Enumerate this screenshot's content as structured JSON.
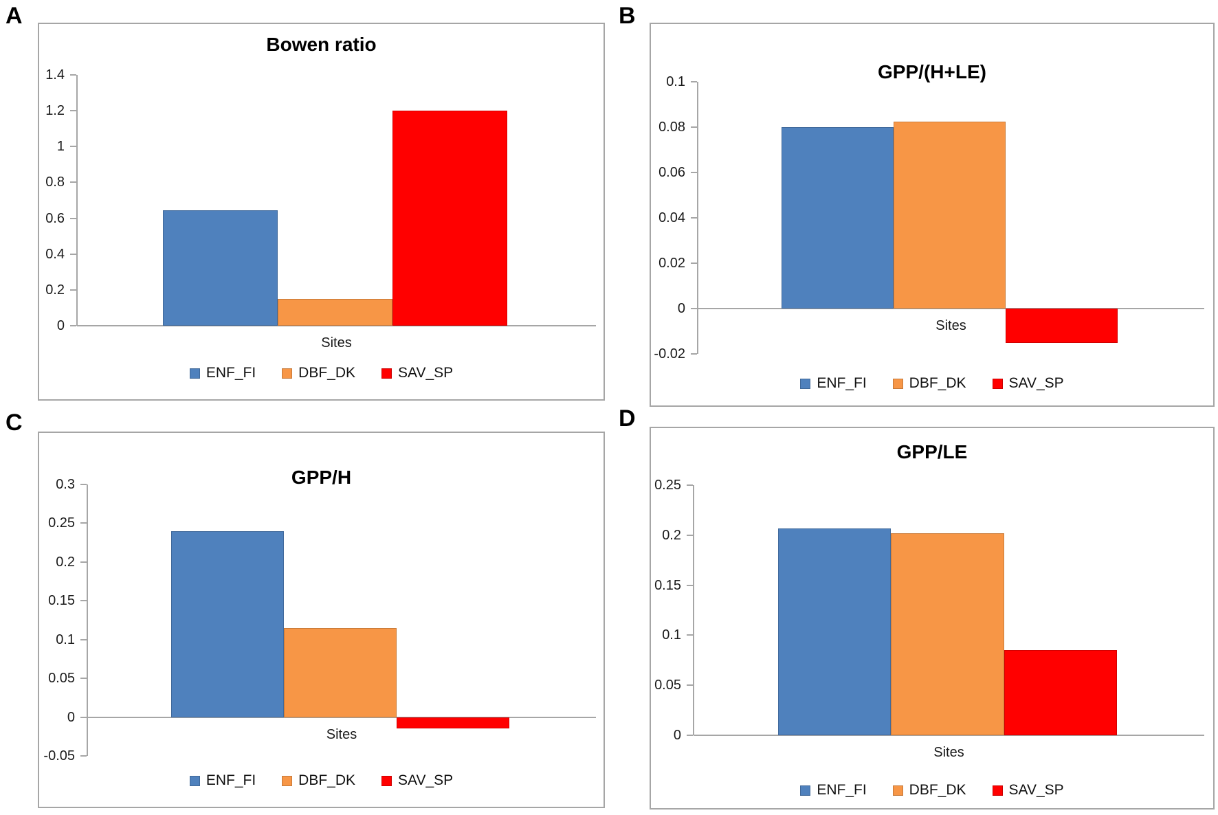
{
  "styles": {
    "axis_color": "#A6A6A6",
    "panel_border_color": "#A6A6A6",
    "text_color": "#1A1A1A",
    "background": "#FFFFFF",
    "series_colors": {
      "ENF_FI": "#4F81BD",
      "DBF_DK": "#F79646",
      "SAV_SP": "#FF0000"
    }
  },
  "chart_data": [
    {
      "panel": "A",
      "type": "bar",
      "title": "Bowen ratio",
      "xlabel": "Sites",
      "categories": [
        "Sites"
      ],
      "series": [
        {
          "name": "ENF_FI",
          "color": "#4F81BD",
          "values": [
            0.645
          ]
        },
        {
          "name": "DBF_DK",
          "color": "#F79646",
          "values": [
            0.15
          ]
        },
        {
          "name": "SAV_SP",
          "color": "#FF0000",
          "values": [
            1.2
          ]
        }
      ],
      "ylim": [
        0,
        1.4
      ],
      "yticks": [
        0,
        0.2,
        0.4,
        0.6,
        0.8,
        1,
        1.2,
        1.4
      ],
      "ytick_labels": [
        "0",
        "0.2",
        "0.4",
        "0.6",
        "0.8",
        "1",
        "1.2",
        "1.4"
      ],
      "legend_position": "bottom",
      "grid": false
    },
    {
      "panel": "B",
      "type": "bar",
      "title": "GPP/(H+LE)",
      "xlabel": "Sites",
      "categories": [
        "Sites"
      ],
      "series": [
        {
          "name": "ENF_FI",
          "color": "#4F81BD",
          "values": [
            0.08
          ]
        },
        {
          "name": "DBF_DK",
          "color": "#F79646",
          "values": [
            0.0825
          ]
        },
        {
          "name": "SAV_SP",
          "color": "#FF0000",
          "values": [
            -0.015
          ]
        }
      ],
      "ylim": [
        -0.02,
        0.1
      ],
      "yticks": [
        -0.02,
        0,
        0.02,
        0.04,
        0.06,
        0.08,
        0.1
      ],
      "ytick_labels": [
        "-0.02",
        "0",
        "0.02",
        "0.04",
        "0.06",
        "0.08",
        "0.1"
      ],
      "legend_position": "bottom",
      "grid": false
    },
    {
      "panel": "C",
      "type": "bar",
      "title": "GPP/H",
      "xlabel": "Sites",
      "categories": [
        "Sites"
      ],
      "series": [
        {
          "name": "ENF_FI",
          "color": "#4F81BD",
          "values": [
            0.24
          ]
        },
        {
          "name": "DBF_DK",
          "color": "#F79646",
          "values": [
            0.115
          ]
        },
        {
          "name": "SAV_SP",
          "color": "#FF0000",
          "values": [
            -0.015
          ]
        }
      ],
      "ylim": [
        -0.05,
        0.3
      ],
      "yticks": [
        -0.05,
        0,
        0.05,
        0.1,
        0.15,
        0.2,
        0.25,
        0.3
      ],
      "ytick_labels": [
        "-0.05",
        "0",
        "0.05",
        "0.1",
        "0.15",
        "0.2",
        "0.25",
        "0.3"
      ],
      "legend_position": "bottom",
      "grid": false
    },
    {
      "panel": "D",
      "type": "bar",
      "title": "GPP/LE",
      "xlabel": "Sites",
      "categories": [
        "Sites"
      ],
      "series": [
        {
          "name": "ENF_FI",
          "color": "#4F81BD",
          "values": [
            0.207
          ]
        },
        {
          "name": "DBF_DK",
          "color": "#F79646",
          "values": [
            0.202
          ]
        },
        {
          "name": "SAV_SP",
          "color": "#FF0000",
          "values": [
            0.085
          ]
        }
      ],
      "ylim": [
        0,
        0.25
      ],
      "yticks": [
        0,
        0.05,
        0.1,
        0.15,
        0.2,
        0.25
      ],
      "ytick_labels": [
        "0",
        "0.05",
        "0.1",
        "0.15",
        "0.2",
        "0.25"
      ],
      "legend_position": "bottom",
      "grid": false
    }
  ]
}
